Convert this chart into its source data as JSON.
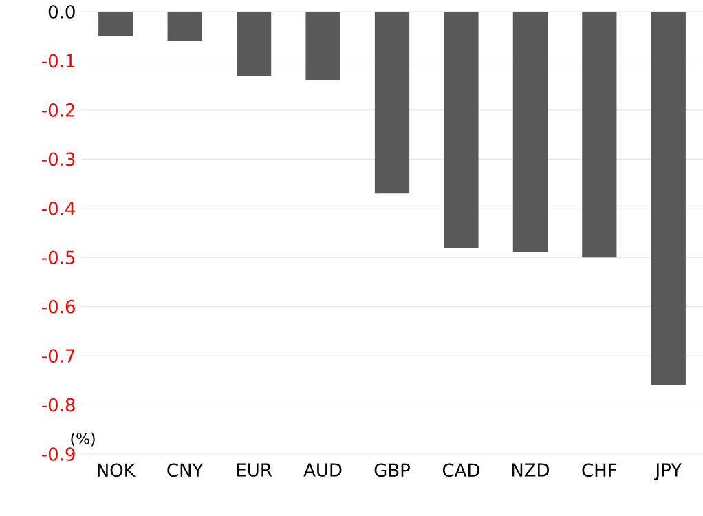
{
  "chart_data": {
    "type": "bar",
    "ylabel": "(%)",
    "categories": [
      "NOK",
      "CNY",
      "EUR",
      "AUD",
      "GBP",
      "CAD",
      "NZD",
      "CHF",
      "JPY"
    ],
    "values": [
      -0.05,
      -0.06,
      -0.13,
      -0.14,
      -0.37,
      -0.48,
      -0.49,
      -0.5,
      -0.76
    ],
    "color": "#595959",
    "ylim": [
      -0.9,
      0
    ],
    "yticks": [
      {
        "value": 0,
        "label": "0.0"
      },
      -0.1,
      -0.2,
      -0.3,
      -0.4,
      -0.5,
      -0.6,
      -0.7,
      -0.8,
      -0.9
    ],
    "grid": "y"
  }
}
